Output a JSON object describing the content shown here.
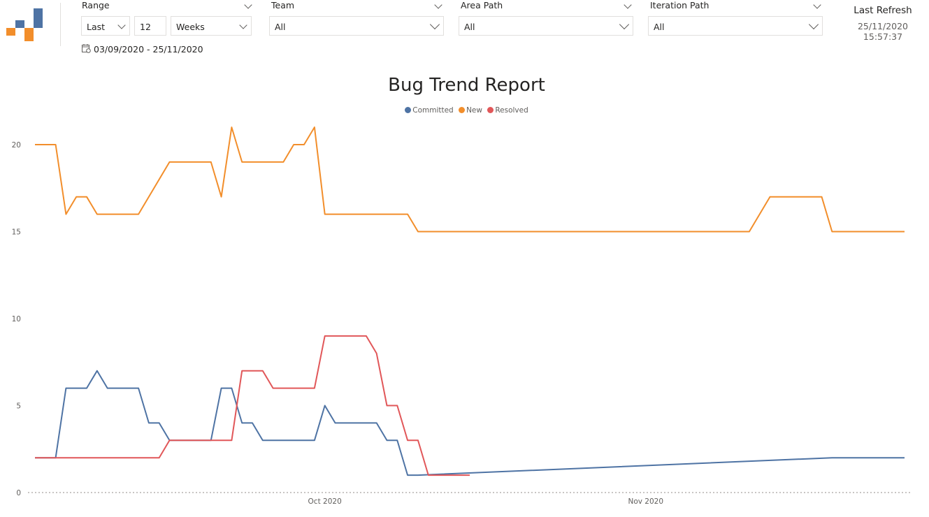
{
  "slicers": {
    "range": {
      "title": "Range",
      "mode": "Last",
      "count": "12",
      "unit": "Weeks",
      "date_range": "03/09/2020 - 25/11/2020"
    },
    "team": {
      "title": "Team",
      "value": "All"
    },
    "area_path": {
      "title": "Area Path",
      "value": "All"
    },
    "iteration_path": {
      "title": "Iteration Path",
      "value": "All"
    }
  },
  "refresh": {
    "label": "Last Refresh",
    "value": "25/11/2020 15:57:37"
  },
  "colors": {
    "committed": "#4e73a4",
    "new": "#f28e2b",
    "resolved": "#e15759"
  },
  "icons": {
    "logo": "logo-icon",
    "calendar": "calendar-icon",
    "dropdown": "chevron-down-icon"
  },
  "chart_data": {
    "type": "line",
    "title": "Bug Trend Report",
    "xlabel": "",
    "ylabel": "",
    "x_ticks": [
      "Oct 2020",
      "Nov 2020"
    ],
    "y_ticks": [
      "0",
      "5",
      "10",
      "15",
      "20"
    ],
    "ylim": [
      0,
      22
    ],
    "legend_position": "top-center",
    "series": [
      {
        "name": "Committed",
        "points": [
          [
            "2020-09-03",
            2
          ],
          [
            "2020-09-05",
            2
          ],
          [
            "2020-09-06",
            6
          ],
          [
            "2020-09-08",
            6
          ],
          [
            "2020-09-09",
            7
          ],
          [
            "2020-09-10",
            6
          ],
          [
            "2020-09-13",
            6
          ],
          [
            "2020-09-14",
            4
          ],
          [
            "2020-09-15",
            4
          ],
          [
            "2020-09-16",
            3
          ],
          [
            "2020-09-20",
            3
          ],
          [
            "2020-09-21",
            6
          ],
          [
            "2020-09-22",
            6
          ],
          [
            "2020-09-23",
            4
          ],
          [
            "2020-09-24",
            4
          ],
          [
            "2020-09-25",
            3
          ],
          [
            "2020-09-30",
            3
          ],
          [
            "2020-10-01",
            5
          ],
          [
            "2020-10-02",
            4
          ],
          [
            "2020-10-06",
            4
          ],
          [
            "2020-10-07",
            3
          ],
          [
            "2020-10-08",
            3
          ],
          [
            "2020-10-09",
            1
          ],
          [
            "2020-10-10",
            1
          ],
          [
            "2020-11-19",
            2
          ],
          [
            "2020-11-26",
            2
          ]
        ]
      },
      {
        "name": "New",
        "points": [
          [
            "2020-09-03",
            20
          ],
          [
            "2020-09-05",
            20
          ],
          [
            "2020-09-06",
            16
          ],
          [
            "2020-09-07",
            17
          ],
          [
            "2020-09-08",
            17
          ],
          [
            "2020-09-09",
            16
          ],
          [
            "2020-09-13",
            16
          ],
          [
            "2020-09-16",
            19
          ],
          [
            "2020-09-20",
            19
          ],
          [
            "2020-09-21",
            17
          ],
          [
            "2020-09-22",
            21
          ],
          [
            "2020-09-23",
            19
          ],
          [
            "2020-09-27",
            19
          ],
          [
            "2020-09-28",
            20
          ],
          [
            "2020-09-29",
            20
          ],
          [
            "2020-09-30",
            21
          ],
          [
            "2020-10-01",
            16
          ],
          [
            "2020-10-09",
            16
          ],
          [
            "2020-10-10",
            15
          ],
          [
            "2020-11-11",
            15
          ],
          [
            "2020-11-13",
            17
          ],
          [
            "2020-11-18",
            17
          ],
          [
            "2020-11-19",
            15
          ],
          [
            "2020-11-26",
            15
          ]
        ]
      },
      {
        "name": "Resolved",
        "points": [
          [
            "2020-09-03",
            2
          ],
          [
            "2020-09-15",
            2
          ],
          [
            "2020-09-16",
            3
          ],
          [
            "2020-09-22",
            3
          ],
          [
            "2020-09-23",
            7
          ],
          [
            "2020-09-25",
            7
          ],
          [
            "2020-09-26",
            6
          ],
          [
            "2020-09-30",
            6
          ],
          [
            "2020-10-01",
            9
          ],
          [
            "2020-10-05",
            9
          ],
          [
            "2020-10-06",
            8
          ],
          [
            "2020-10-07",
            5
          ],
          [
            "2020-10-08",
            5
          ],
          [
            "2020-10-09",
            3
          ],
          [
            "2020-10-10",
            3
          ],
          [
            "2020-10-11",
            1
          ],
          [
            "2020-10-15",
            1
          ]
        ]
      }
    ]
  }
}
